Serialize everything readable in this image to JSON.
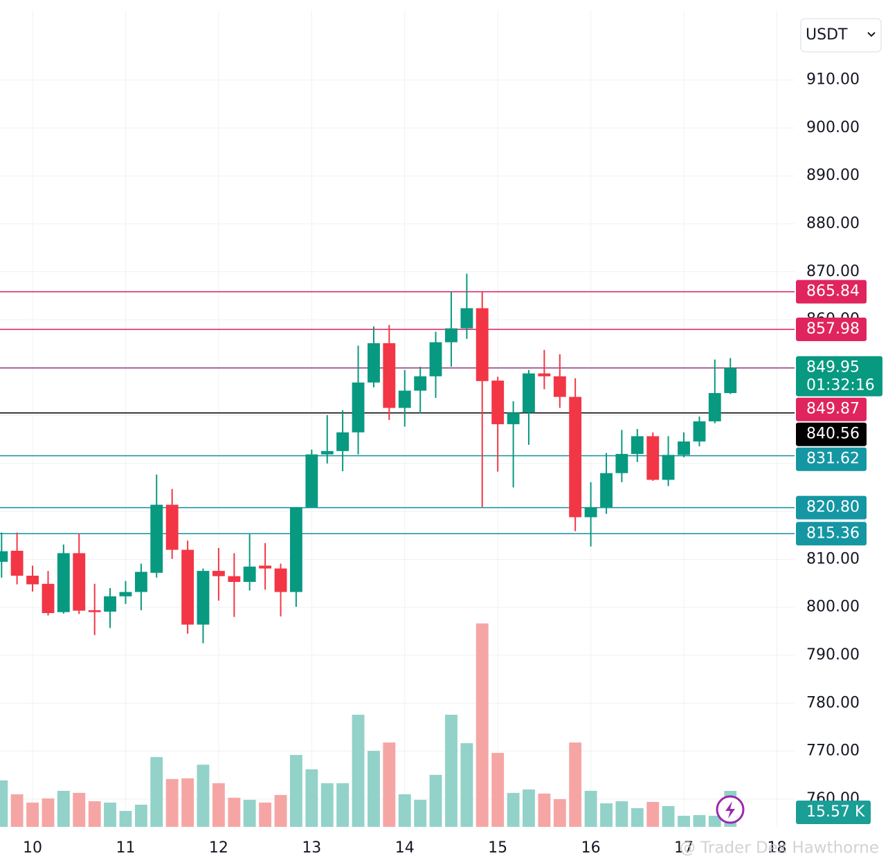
{
  "toolbar": {
    "currency": "USDT"
  },
  "chart_data": {
    "type": "candlestick",
    "x": [
      9.667,
      9.833,
      10,
      10.167,
      10.333,
      10.5,
      10.667,
      10.833,
      11,
      11.167,
      11.333,
      11.5,
      11.667,
      11.833,
      12,
      12.167,
      12.333,
      12.5,
      12.667,
      12.833,
      13,
      13.167,
      13.333,
      13.5,
      13.667,
      13.833,
      14,
      14.167,
      14.333,
      14.5,
      14.667,
      14.833,
      15,
      15.167,
      15.333,
      15.5,
      15.667,
      15.833,
      16,
      16.167,
      16.333,
      16.5,
      16.667,
      16.833,
      17,
      17.167,
      17.333,
      17.5
    ],
    "open": [
      809.5,
      811.8,
      806.6,
      804.9,
      799.0,
      811.3,
      799.4,
      799.1,
      802.3,
      803.2,
      807.2,
      821.4,
      812.0,
      796.4,
      807.6,
      806.5,
      805.3,
      808.7,
      808.1,
      803.2,
      820.9,
      831.9,
      832.6,
      836.5,
      846.9,
      855.1,
      841.6,
      845.2,
      848.2,
      855.3,
      858.2,
      862.4,
      847.3,
      838.2,
      840.6,
      848.8,
      848.2,
      843.9,
      818.8,
      820.9,
      828.0,
      832.0,
      835.7,
      826.6,
      831.8,
      834.6,
      838.8,
      844.7
    ],
    "high": [
      815.6,
      815.6,
      808.7,
      807.6,
      813.1,
      815.4,
      804.9,
      804.0,
      805.5,
      809.1,
      827.7,
      824.7,
      813.9,
      808.1,
      812.4,
      811.3,
      815.3,
      813.4,
      809.1,
      820.9,
      832.9,
      840.1,
      841.1,
      854.6,
      858.6,
      858.9,
      849.5,
      850.2,
      857.5,
      865.8,
      869.6,
      865.8,
      848.1,
      843.0,
      849.5,
      853.7,
      852.8,
      847.8,
      826.1,
      832.2,
      837.0,
      837.2,
      836.5,
      835.7,
      836.5,
      839.8,
      851.7,
      852.0
    ],
    "low": [
      806.2,
      804.8,
      803.3,
      798.3,
      798.7,
      798.6,
      794.2,
      795.7,
      800.7,
      799.4,
      806.2,
      810.1,
      794.5,
      792.5,
      801.4,
      798.0,
      803.5,
      803.7,
      798.1,
      800.1,
      820.9,
      830.0,
      828.4,
      831.9,
      845.9,
      839.1,
      837.7,
      840.4,
      843.7,
      850.2,
      856.0,
      820.9,
      828.3,
      825.0,
      833.9,
      845.5,
      841.6,
      815.9,
      812.7,
      819.5,
      826.1,
      830.3,
      826.4,
      825.3,
      831.3,
      833.6,
      838.4,
      844.5
    ],
    "close": [
      811.7,
      806.6,
      804.8,
      798.8,
      811.3,
      799.3,
      799.0,
      802.3,
      803.2,
      807.4,
      821.4,
      812.0,
      796.4,
      807.6,
      806.5,
      805.3,
      808.5,
      808.1,
      803.2,
      820.9,
      831.9,
      832.6,
      836.5,
      846.9,
      855.1,
      841.6,
      845.2,
      848.2,
      855.3,
      858.2,
      862.4,
      847.2,
      838.2,
      840.6,
      848.8,
      848.2,
      843.9,
      818.8,
      820.9,
      828.0,
      832.0,
      835.7,
      826.6,
      831.8,
      834.6,
      838.8,
      844.7,
      849.95
    ],
    "up_color": "#089981",
    "down_color": "#f23645",
    "xlim": [
      9.65,
      18.19
    ],
    "xticks": [
      10,
      11,
      12,
      13,
      14,
      15,
      16,
      17,
      18
    ],
    "ylim": [
      754.2,
      926.7
    ],
    "yticks": [
      {
        "value": 760,
        "label": "760.00"
      },
      {
        "value": 770,
        "label": "770.00"
      },
      {
        "value": 780,
        "label": "780.00"
      },
      {
        "value": 790,
        "label": "790.00"
      },
      {
        "value": 800,
        "label": "800.00"
      },
      {
        "value": 810,
        "label": "810.00"
      },
      {
        "value": 820,
        "label": "820.00"
      },
      {
        "value": 830,
        "label": "830.00"
      },
      {
        "value": 840,
        "label": "840.00"
      },
      {
        "value": 850,
        "label": "850.00"
      },
      {
        "value": 860,
        "label": "860.00"
      },
      {
        "value": 870,
        "label": "870.00"
      },
      {
        "value": 880,
        "label": "880.00"
      },
      {
        "value": 890,
        "label": "890.00"
      },
      {
        "value": 900,
        "label": "900.00"
      },
      {
        "value": 910,
        "label": "910.00"
      }
    ],
    "grid": true,
    "volume": {
      "values": [
        20.1,
        14.1,
        10.5,
        12.3,
        15.6,
        14.7,
        11.1,
        10.5,
        6.9,
        9.6,
        30.2,
        20.7,
        21.0,
        26.9,
        18.9,
        12.6,
        11.7,
        10.5,
        13.8,
        31.1,
        24.9,
        18.9,
        18.9,
        48.5,
        32.9,
        36.5,
        14.1,
        11.7,
        22.5,
        48.5,
        36.2,
        88.0,
        32.0,
        14.7,
        16.2,
        14.4,
        12.0,
        36.5,
        15.6,
        10.2,
        11.1,
        8.1,
        10.8,
        9.0,
        4.8,
        5.1,
        4.8,
        15.57
      ],
      "up_color": "#92d2c9",
      "down_color": "#f5a6a4",
      "last_label": "15.57 K",
      "label_color": "#1a9e96"
    },
    "price_lines": [
      {
        "value": 865.84,
        "color": "#d81b60",
        "label_color": "#e0245e"
      },
      {
        "value": 857.98,
        "color": "#d81b60",
        "label_color": "#e0245e"
      },
      {
        "value": 849.95,
        "color": "#8e3a78",
        "label_color": "#089981",
        "countdown": "01:32:16"
      },
      {
        "value": 849.87,
        "color": "none",
        "label_color": "#e0245e"
      },
      {
        "value": 840.56,
        "color": "#000000",
        "label_color": "#000000"
      },
      {
        "value": 831.62,
        "color": "#12909c",
        "label_color": "#1596a3"
      },
      {
        "value": 820.8,
        "label": "820.80",
        "color": "#12909c",
        "label_color": "#1596a3"
      },
      {
        "value": 815.36,
        "color": "#12909c",
        "label_color": "#1596a3"
      }
    ],
    "watermark": "@ Trader Dex Hawthorne"
  }
}
